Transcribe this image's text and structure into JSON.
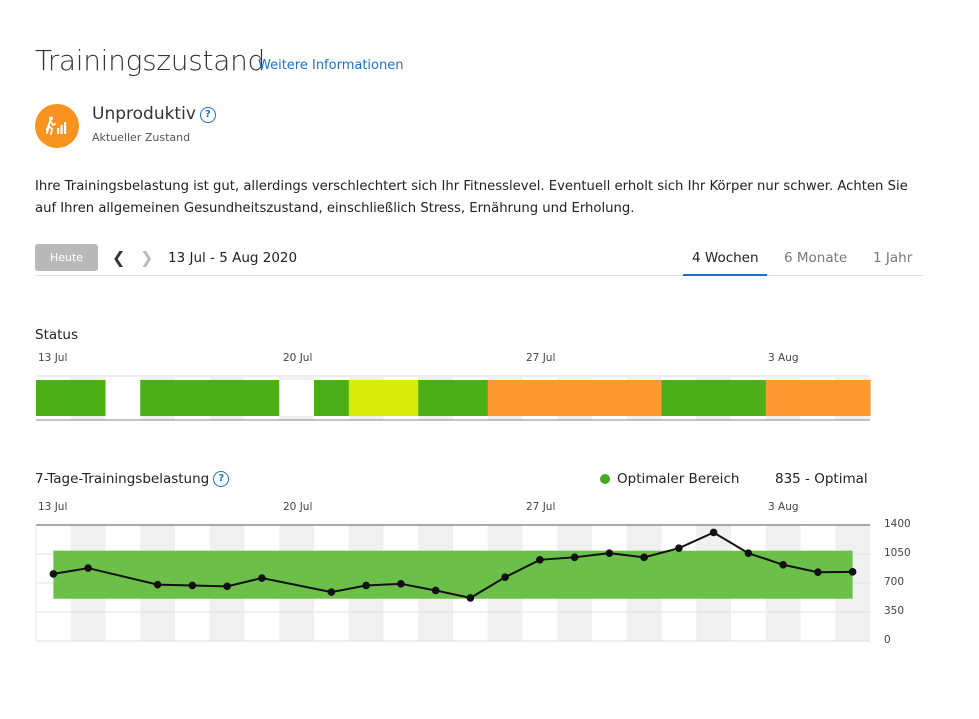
{
  "header": {
    "title": "Trainingszustand",
    "more_info_link": "Weitere Informationen"
  },
  "current_status": {
    "name": "Unproduktiv",
    "subtitle": "Aktueller Zustand",
    "icon": "running-person-bars-icon",
    "color": "#f7931e"
  },
  "description": "Ihre Trainingsbelastung ist gut, allerdings verschlechtert sich Ihr Fitnesslevel. Eventuell erholt sich Ihr Körper nur schwer. Achten Sie auf Ihren allgemeinen Gesundheitszustand, einschließlich Stress, Ernährung und Erholung.",
  "toolbar": {
    "today_label": "Heute",
    "date_range": "13 Jul - 5 Aug 2020",
    "tabs": [
      {
        "label": "4 Wochen",
        "active": true
      },
      {
        "label": "6 Monate",
        "active": false
      },
      {
        "label": "1 Jahr",
        "active": false
      }
    ]
  },
  "status_chart": {
    "label": "Status",
    "week_labels": [
      "13 Jul",
      "20 Jul",
      "27 Jul",
      "3 Aug"
    ],
    "colors": {
      "green": "#4caf17",
      "yellow": "#d6ec0a",
      "orange": "#ff9a33",
      "none": "#ffffff"
    },
    "days": [
      "green",
      "green",
      "none",
      "green",
      "green",
      "green",
      "green",
      "none",
      "green",
      "yellow",
      "yellow",
      "green",
      "green",
      "orange",
      "orange",
      "orange",
      "orange",
      "orange",
      "green",
      "green",
      "green",
      "orange",
      "orange",
      "orange"
    ]
  },
  "load_chart": {
    "label": "7-Tage-Trainingsbelastung",
    "legend_label": "Optimaler Bereich",
    "current_value": "835 - Optimal",
    "week_labels": [
      "13 Jul",
      "20 Jul",
      "27 Jul",
      "3 Aug"
    ],
    "y_ticks": [
      "1400",
      "1050",
      "700",
      "350",
      "0"
    ]
  },
  "chart_data": {
    "type": "line",
    "x": [
      "13 Jul",
      "14 Jul",
      "15 Jul",
      "16 Jul",
      "17 Jul",
      "18 Jul",
      "19 Jul",
      "20 Jul",
      "21 Jul",
      "22 Jul",
      "23 Jul",
      "24 Jul",
      "25 Jul",
      "26 Jul",
      "27 Jul",
      "28 Jul",
      "29 Jul",
      "30 Jul",
      "31 Jul",
      "1 Aug",
      "2 Aug",
      "3 Aug",
      "4 Aug",
      "5 Aug"
    ],
    "series": [
      {
        "values": [
          810,
          880,
          null,
          680,
          670,
          660,
          760,
          null,
          590,
          670,
          690,
          610,
          520,
          770,
          980,
          1010,
          1060,
          1010,
          1120,
          1310,
          1060,
          920,
          830,
          835
        ]
      }
    ],
    "optimal_range": [
      510,
      1090
    ],
    "ylim": [
      0,
      1400
    ],
    "title": "7-Tage-Trainingsbelastung",
    "xlabel": "",
    "ylabel": "",
    "grid": true,
    "legend_position": "top-right",
    "line_color": "#111111",
    "range_color": "#6cc04a"
  }
}
